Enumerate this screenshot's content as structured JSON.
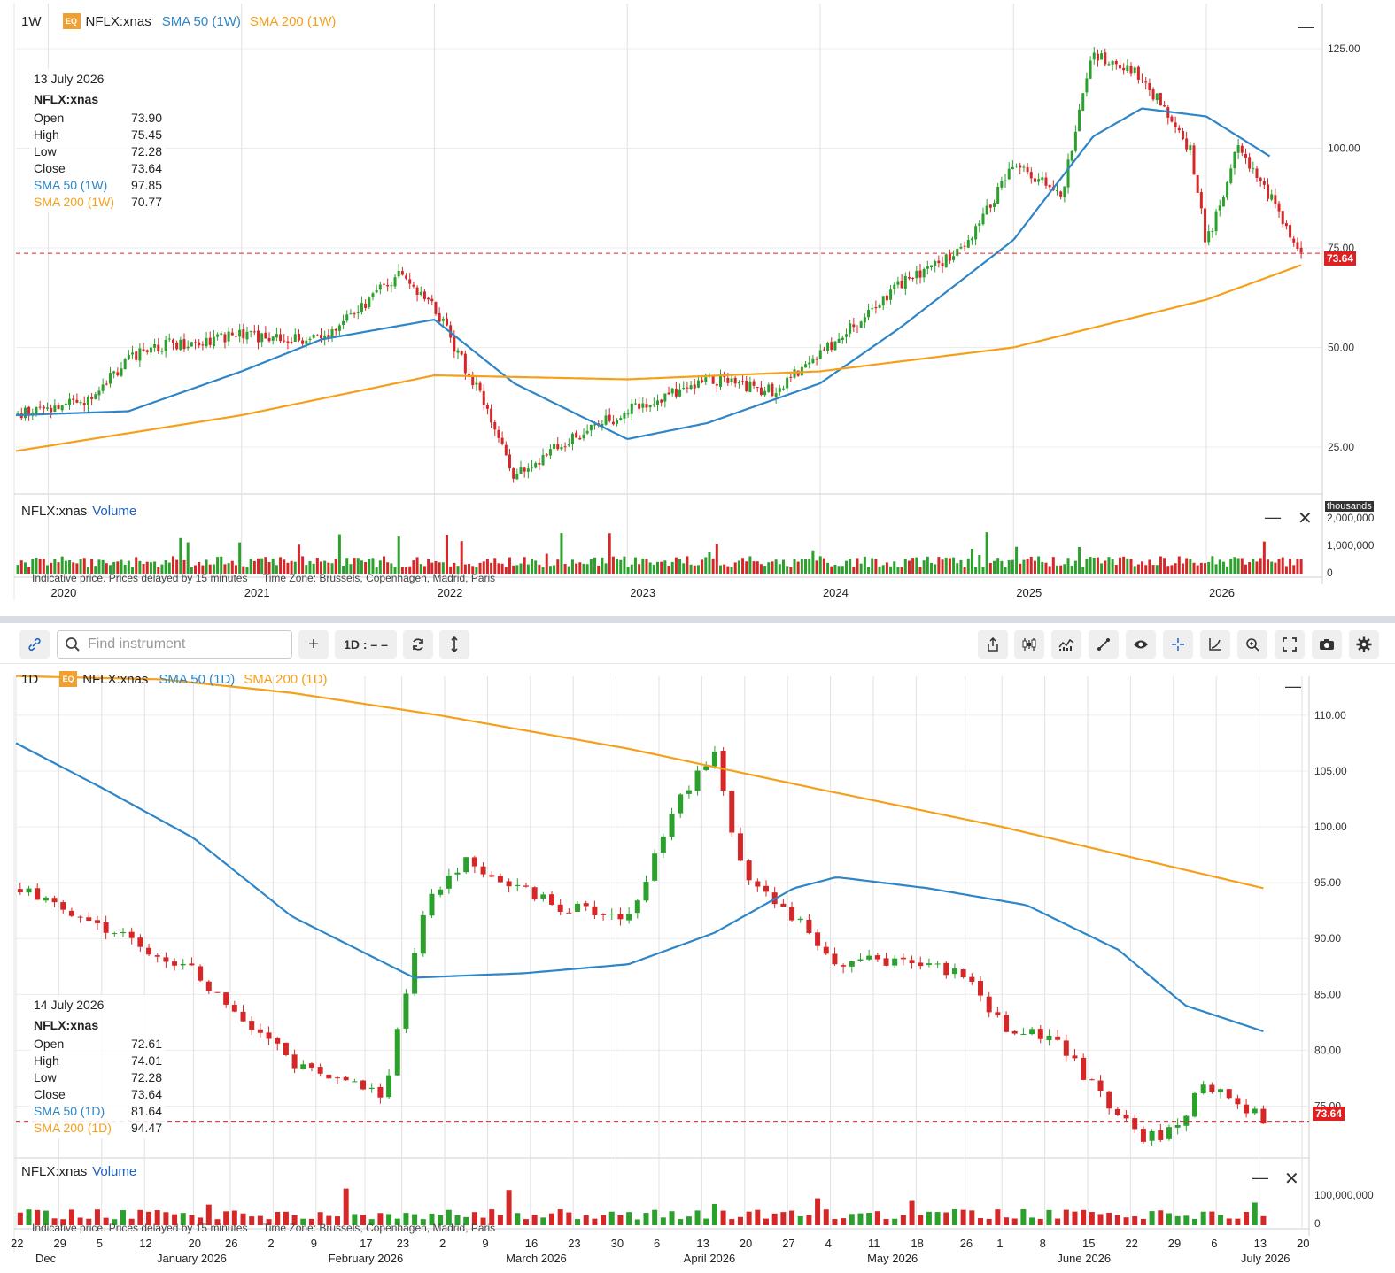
{
  "top": {
    "interval": "1W",
    "eq_badge": "EQ",
    "symbol": "NFLX:xnas",
    "sma50_label": "SMA 50 (1W)",
    "sma200_label": "SMA 200 (1W)",
    "legend": {
      "date": "13 July 2026",
      "symbol": "NFLX:xnas",
      "open_label": "Open",
      "open": "73.90",
      "high_label": "High",
      "high": "75.45",
      "low_label": "Low",
      "low": "72.28",
      "close_label": "Close",
      "close": "73.64",
      "sma50_label": "SMA 50 (1W)",
      "sma50": "97.85",
      "sma200_label": "SMA 200 (1W)",
      "sma200": "70.77"
    },
    "last_price_tag": "73.64",
    "y_ticks": [
      "125.00",
      "100.00",
      "75.00",
      "50.00",
      "25.00"
    ],
    "volume_title": "NFLX:xnas",
    "volume_label": "Volume",
    "volume_ticks": [
      "2,000,000",
      "1,000,000",
      "0"
    ],
    "volume_unit": "thousands",
    "x_ticks": [
      "2020",
      "2021",
      "2022",
      "2023",
      "2024",
      "2025",
      "2026"
    ],
    "disclaimer": "Indicative price. Prices delayed by 15 minutes",
    "timezone": "Time Zone: Brussels, Copenhagen, Madrid, Paris"
  },
  "toolbar": {
    "search_placeholder": "Find instrument",
    "add_label": "+",
    "interval_label": "1D : – –"
  },
  "bottom": {
    "interval": "1D",
    "eq_badge": "EQ",
    "symbol": "NFLX:xnas",
    "sma50_label": "SMA 50 (1D)",
    "sma200_label": "SMA 200 (1D)",
    "legend": {
      "date": "14 July 2026",
      "symbol": "NFLX:xnas",
      "open_label": "Open",
      "open": "72.61",
      "high_label": "High",
      "high": "74.01",
      "low_label": "Low",
      "low": "72.28",
      "close_label": "Close",
      "close": "73.64",
      "sma50_label": "SMA 50 (1D)",
      "sma50": "81.64",
      "sma200_label": "SMA 200 (1D)",
      "sma200": "94.47"
    },
    "last_price_tag": "73.64",
    "y_ticks": [
      "110.00",
      "105.00",
      "100.00",
      "95.00",
      "90.00",
      "85.00",
      "80.00",
      "75.00"
    ],
    "volume_title": "NFLX:xnas",
    "volume_label": "Volume",
    "volume_ticks": [
      "100,000,000",
      "0"
    ],
    "x_day_ticks": [
      "22",
      "29",
      "5",
      "12",
      "20",
      "26",
      "2",
      "9",
      "17",
      "23",
      "2",
      "9",
      "16",
      "23",
      "30",
      "6",
      "13",
      "20",
      "27",
      "4",
      "11",
      "18",
      "26",
      "1",
      "8",
      "15",
      "22",
      "29",
      "6",
      "13",
      "20"
    ],
    "x_month_ticks": [
      "Dec",
      "January 2026",
      "February 2026",
      "March 2026",
      "April 2026",
      "May 2026",
      "June 2026",
      "July 2026"
    ],
    "disclaimer": "Indicative price. Prices delayed by 15 minutes",
    "timezone": "Time Zone: Brussels, Copenhagen, Madrid, Paris"
  },
  "colors": {
    "up": "#2ca02c",
    "down": "#d62728",
    "sma50": "#2e86c8",
    "sma200": "#f5a01a",
    "last": "#e02020"
  },
  "chart_data": [
    {
      "type": "candlestick",
      "title": "NFLX:xnas 1W",
      "ylim": [
        15,
        135
      ],
      "x_range": [
        "2019-11",
        "2026-07"
      ],
      "series": [
        {
          "name": "SMA 50 (1W)",
          "x": [
            "2019-11",
            "2020-06",
            "2021-01",
            "2021-06",
            "2022-01",
            "2022-06",
            "2023-01",
            "2023-06",
            "2024-01",
            "2024-06",
            "2025-01",
            "2025-06",
            "2025-09",
            "2026-01",
            "2026-05"
          ],
          "values": [
            33,
            34,
            44,
            52,
            57,
            41,
            27,
            31,
            41,
            55,
            77,
            103,
            110,
            108,
            98
          ]
        },
        {
          "name": "SMA 200 (1W)",
          "x": [
            "2019-11",
            "2021-01",
            "2022-01",
            "2023-01",
            "2024-01",
            "2025-01",
            "2026-01",
            "2026-07"
          ],
          "values": [
            24,
            33,
            43,
            42,
            44,
            50,
            62,
            70.77
          ]
        },
        {
          "name": "Close",
          "x": [
            "2019-11",
            "2020-03",
            "2020-07",
            "2021-01",
            "2021-06",
            "2021-11",
            "2022-01",
            "2022-04",
            "2022-06",
            "2022-10",
            "2023-01",
            "2023-06",
            "2023-10",
            "2024-01",
            "2024-06",
            "2024-10",
            "2025-01",
            "2025-04",
            "2025-06",
            "2025-09",
            "2025-12",
            "2026-01",
            "2026-03",
            "2026-05",
            "2026-07"
          ],
          "values": [
            33,
            36,
            50,
            53,
            52,
            69,
            60,
            37,
            18,
            28,
            34,
            42,
            39,
            48,
            66,
            75,
            96,
            88,
            124,
            118,
            100,
            76,
            100,
            88,
            73.64
          ]
        }
      ],
      "volume": {
        "name": "Volume",
        "ylim": [
          0,
          2500000
        ]
      }
    },
    {
      "type": "candlestick",
      "title": "NFLX:xnas 1D",
      "ylim": [
        71,
        113
      ],
      "x_range": [
        "2025-12-22",
        "2026-07-20"
      ],
      "series": [
        {
          "name": "SMA 50 (1D)",
          "x": [
            "2025-12-22",
            "2026-01-05",
            "2026-01-20",
            "2026-02-05",
            "2026-02-25",
            "2026-03-15",
            "2026-04-01",
            "2026-04-15",
            "2026-04-28",
            "2026-05-05",
            "2026-05-20",
            "2026-06-05",
            "2026-06-20",
            "2026-07-01",
            "2026-07-14"
          ],
          "values": [
            107.5,
            103.5,
            99,
            92,
            86.5,
            86.9,
            87.7,
            90.5,
            94.5,
            95.5,
            94.5,
            93,
            89,
            84,
            81.64
          ]
        },
        {
          "name": "SMA 200 (1D)",
          "x": [
            "2025-12-22",
            "2026-01-15",
            "2026-02-05",
            "2026-03-01",
            "2026-04-01",
            "2026-05-01",
            "2026-06-01",
            "2026-07-14"
          ],
          "values": [
            113.5,
            113.2,
            112,
            110,
            107,
            103.5,
            100,
            94.47
          ]
        },
        {
          "name": "Close",
          "x": [
            "2025-12-22",
            "2026-01-05",
            "2026-01-20",
            "2026-02-05",
            "2026-02-20",
            "2026-02-27",
            "2026-03-05",
            "2026-03-20",
            "2026-04-01",
            "2026-04-10",
            "2026-04-15",
            "2026-04-20",
            "2026-04-28",
            "2026-05-05",
            "2026-05-15",
            "2026-05-26",
            "2026-06-01",
            "2026-06-10",
            "2026-06-19",
            "2026-06-24",
            "2026-06-30",
            "2026-07-03",
            "2026-07-08",
            "2026-07-14"
          ],
          "values": [
            94.5,
            91,
            87,
            79,
            76,
            93,
            97,
            93,
            92,
            103,
            107,
            95,
            92,
            88,
            88,
            87,
            82,
            81,
            74.5,
            72,
            73,
            77,
            76,
            73.64
          ]
        }
      ],
      "volume": {
        "name": "Volume",
        "ylim": [
          0,
          140000000
        ]
      }
    }
  ]
}
